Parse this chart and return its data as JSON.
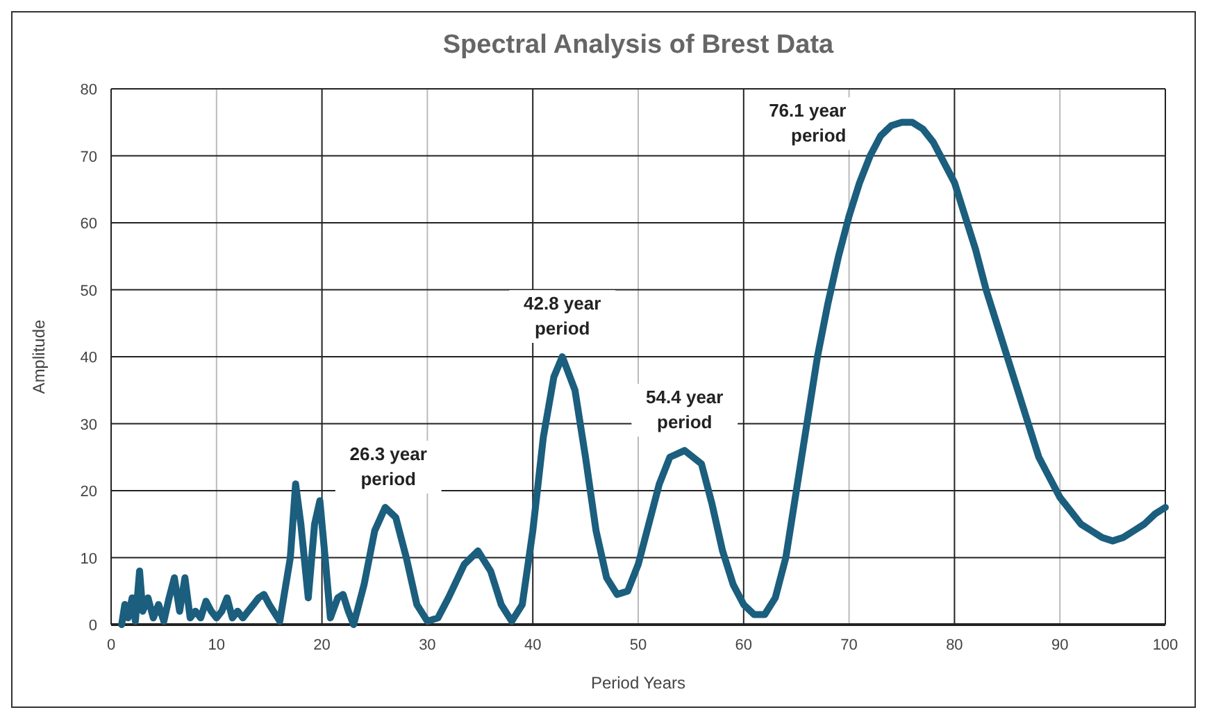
{
  "chart_data": {
    "type": "line",
    "title": "Spectral Analysis of Brest Data",
    "xlabel": "Period Years",
    "ylabel": "Amplitude",
    "xlim": [
      0,
      100
    ],
    "xticks": [
      0,
      10,
      20,
      30,
      40,
      50,
      60,
      70,
      80,
      90,
      100
    ],
    "ylim": [
      0,
      80
    ],
    "yticks": [
      0,
      10,
      20,
      30,
      40,
      50,
      60,
      70,
      80
    ],
    "grid": true,
    "marker": "none",
    "line_style": "solid",
    "series": [
      {
        "color": "#1b5e7e",
        "x": [
          1,
          1.3,
          1.6,
          2,
          2.3,
          2.7,
          3,
          3.5,
          4,
          4.5,
          5,
          5.5,
          6,
          6.5,
          7,
          7.5,
          8,
          8.5,
          9,
          9.5,
          10,
          10.5,
          11,
          11.5,
          12,
          12.5,
          13,
          13.5,
          14,
          14.5,
          15,
          16,
          17,
          17.5,
          18,
          18.7,
          19.3,
          19.8,
          20.3,
          20.8,
          21.5,
          22,
          22.5,
          23,
          24,
          25,
          26,
          27,
          28,
          29,
          30,
          31,
          32,
          33.5,
          34.8,
          36,
          37,
          38,
          39,
          40,
          41,
          42,
          42.8,
          44,
          45,
          46,
          47,
          48,
          49,
          50,
          51,
          52,
          53,
          54.4,
          56,
          57,
          58,
          59,
          60,
          61,
          62,
          63,
          64,
          65,
          66,
          67,
          68,
          69,
          70,
          71,
          72,
          73,
          74,
          75,
          76,
          77,
          78,
          79,
          80,
          81,
          82,
          83,
          84,
          85,
          86,
          87,
          88,
          89,
          90,
          91,
          92,
          93,
          94,
          95,
          96,
          97,
          98,
          99,
          100
        ],
        "values": [
          0,
          3,
          1,
          4,
          0.5,
          8,
          2,
          4,
          1,
          3,
          0.5,
          4,
          7,
          2,
          7,
          1,
          2,
          1,
          3.5,
          2,
          1,
          2,
          4,
          1,
          2,
          1,
          2,
          3,
          4,
          4.5,
          3,
          0.5,
          10,
          21,
          15,
          4,
          15,
          18.5,
          10,
          1,
          4,
          4.5,
          2,
          0,
          6,
          14,
          17.5,
          16,
          10,
          3,
          0.5,
          1,
          4,
          9,
          11,
          8,
          3,
          0.5,
          3,
          14,
          28,
          37,
          40,
          35,
          25,
          14,
          7,
          4.5,
          5,
          9,
          15,
          21,
          25,
          26,
          24,
          18,
          11,
          6,
          3,
          1.5,
          1.5,
          4,
          10,
          20,
          30,
          40,
          48,
          55,
          61,
          66,
          70,
          73,
          74.5,
          75,
          75,
          74,
          72,
          69,
          66,
          61,
          56,
          50,
          45,
          40,
          35,
          30,
          25,
          22,
          19,
          17,
          15,
          14,
          13,
          12.5,
          13,
          14,
          15,
          16.5,
          17.5
        ]
      }
    ],
    "annotations": [
      {
        "text": "26.3 year\nperiod",
        "x": 26.3,
        "y": 17.5
      },
      {
        "text": "42.8 year\nperiod",
        "x": 42.8,
        "y": 40
      },
      {
        "text": "54.4 year\nperiod",
        "x": 54.4,
        "y": 26
      },
      "76.1 year\nperiod"
    ]
  }
}
